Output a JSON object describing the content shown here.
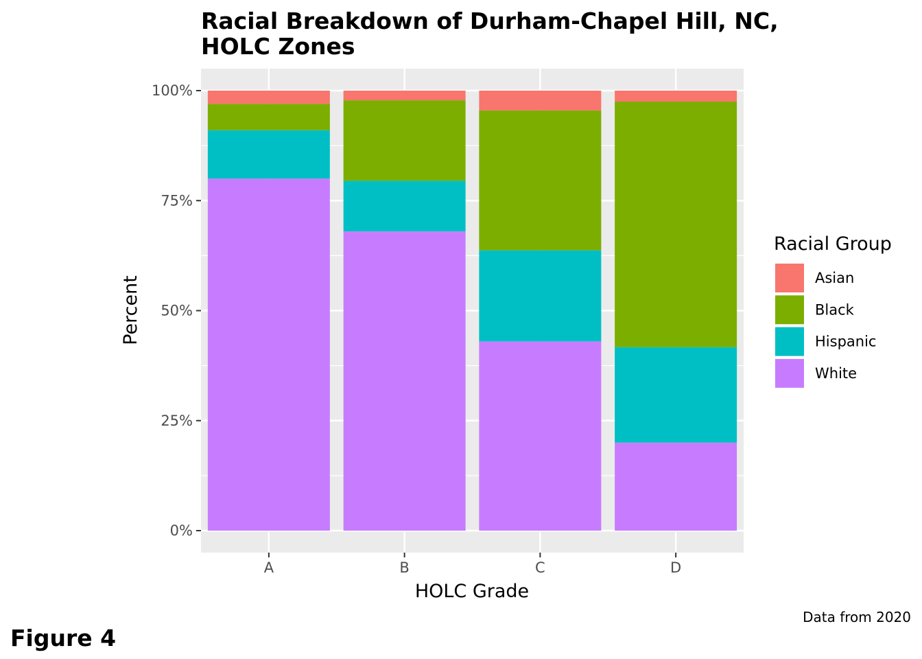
{
  "chart_data": {
    "type": "bar",
    "stacked": true,
    "title": "Racial Breakdown of Durham-Chapel Hill, NC,",
    "title_line2": "HOLC Zones",
    "xlabel": "HOLC Grade",
    "ylabel": "Percent",
    "categories": [
      "A",
      "B",
      "C",
      "D"
    ],
    "ylim": [
      0,
      1
    ],
    "yticks": [
      {
        "value": 0,
        "label": "0%"
      },
      {
        "value": 0.25,
        "label": "25%"
      },
      {
        "value": 0.5,
        "label": "50%"
      },
      {
        "value": 0.75,
        "label": "75%"
      },
      {
        "value": 1,
        "label": "100%"
      }
    ],
    "series": [
      {
        "name": "White",
        "color": "#C77CFF",
        "values": [
          0.8,
          0.68,
          0.43,
          0.2
        ]
      },
      {
        "name": "Hispanic",
        "color": "#00BFC4",
        "values": [
          0.11,
          0.115,
          0.207,
          0.217
        ]
      },
      {
        "name": "Black",
        "color": "#7CAE00",
        "values": [
          0.06,
          0.183,
          0.318,
          0.558
        ]
      },
      {
        "name": "Asian",
        "color": "#F8766D",
        "values": [
          0.03,
          0.022,
          0.045,
          0.025
        ]
      }
    ],
    "legend": {
      "title": "Racial Group",
      "position": "right",
      "order": [
        "Asian",
        "Black",
        "Hispanic",
        "White"
      ]
    },
    "grid": true,
    "panel_background": "#EBEBEB",
    "caption": "Data from 2020"
  },
  "figure_label": "Figure 4"
}
